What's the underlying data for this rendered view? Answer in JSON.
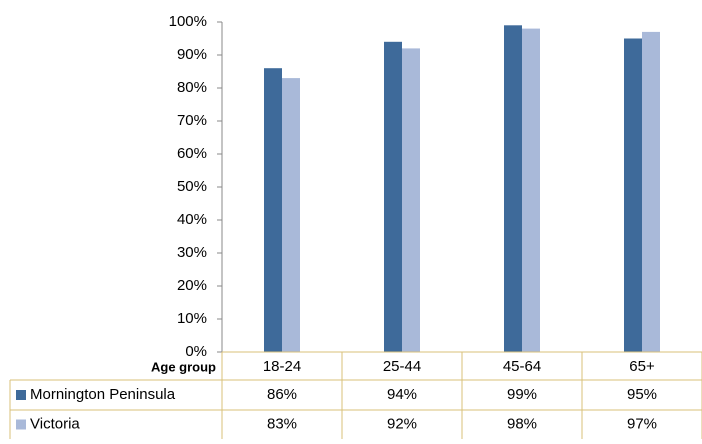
{
  "chart_data": {
    "type": "bar",
    "x_label": "Age group",
    "categories": [
      "18-24",
      "25-44",
      "45-64",
      "65+"
    ],
    "series": [
      {
        "name": "Mornington Peninsula",
        "color": "#3e6a9a",
        "values": [
          86,
          94,
          99,
          95
        ],
        "value_labels": [
          "86%",
          "94%",
          "99%",
          "95%"
        ]
      },
      {
        "name": "Victoria",
        "color": "#a9b9d9",
        "values": [
          83,
          92,
          98,
          97
        ],
        "value_labels": [
          "83%",
          "92%",
          "98%",
          "97%"
        ]
      }
    ],
    "ylim": [
      0,
      100
    ],
    "yticks": [
      {
        "value": 0,
        "label": "0%"
      },
      {
        "value": 10,
        "label": "10%"
      },
      {
        "value": 20,
        "label": "20%"
      },
      {
        "value": 30,
        "label": "30%"
      },
      {
        "value": 40,
        "label": "40%"
      },
      {
        "value": 50,
        "label": "50%"
      },
      {
        "value": 60,
        "label": "60%"
      },
      {
        "value": 70,
        "label": "70%"
      },
      {
        "value": 80,
        "label": "80%"
      },
      {
        "value": 90,
        "label": "90%"
      },
      {
        "value": 100,
        "label": "100%"
      }
    ],
    "grid": false
  }
}
